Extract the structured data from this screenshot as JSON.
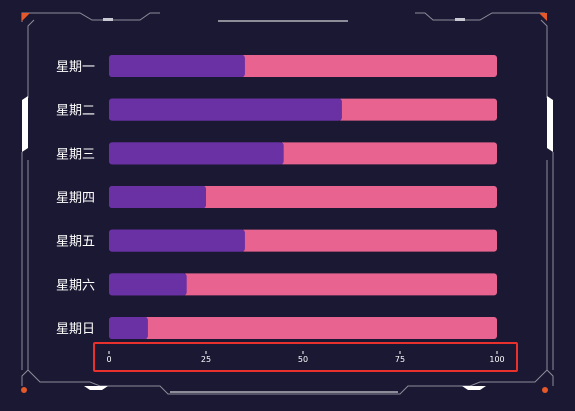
{
  "chart_data": {
    "type": "bar",
    "orientation": "horizontal",
    "stacked": true,
    "categories": [
      "星期一",
      "星期二",
      "星期三",
      "星期四",
      "星期五",
      "星期六",
      "星期日"
    ],
    "series": [
      {
        "values": [
          35,
          60,
          45,
          25,
          35,
          20,
          10
        ],
        "color": "#6a31a5"
      },
      {
        "values": [
          65,
          40,
          55,
          75,
          65,
          80,
          90
        ],
        "color": "#e8638f"
      }
    ],
    "xlim": [
      0,
      100
    ],
    "xticks": [
      "0",
      "25",
      "50",
      "75",
      "100"
    ],
    "grid": false,
    "legend": "none"
  },
  "colors": {
    "background": "#1b1833",
    "frame": "#8c8c99",
    "frame_accent": "#e5582a",
    "highlight_box": "#e8302c"
  }
}
